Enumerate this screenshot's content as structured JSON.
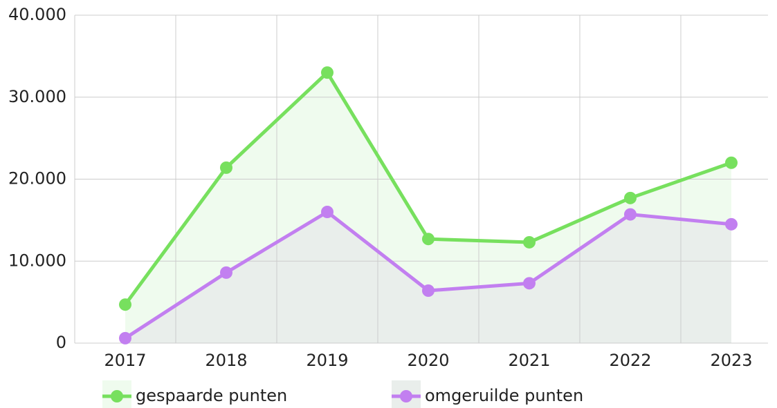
{
  "chart_data": {
    "type": "line",
    "categories": [
      "2017",
      "2018",
      "2019",
      "2020",
      "2021",
      "2022",
      "2023"
    ],
    "series": [
      {
        "name": "gespaarde punten",
        "color": "#77e05e",
        "fill": "#effbee",
        "values": [
          4700,
          21400,
          33000,
          12700,
          12300,
          17700,
          22000
        ]
      },
      {
        "name": "omgeruilde punten",
        "color": "#c27ff0",
        "fill": "#e9eeeb",
        "values": [
          600,
          8600,
          16000,
          6400,
          7300,
          15700,
          14500
        ]
      }
    ],
    "ylim": [
      0,
      40000
    ],
    "yticks": [
      0,
      {
        "value": 10000,
        "label": "10.000"
      },
      {
        "value": 20000,
        "label": "20.000"
      },
      {
        "value": 30000,
        "label": "30.000"
      },
      {
        "value": 40000,
        "label": "40.000"
      }
    ],
    "grid": true
  }
}
